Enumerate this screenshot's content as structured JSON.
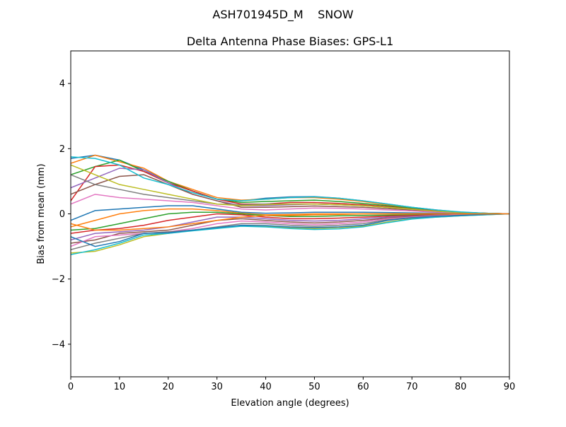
{
  "chart_data": {
    "type": "line",
    "suptitle": "ASH701945D_M    SNOW",
    "title": "Delta Antenna Phase Biases: GPS-L1",
    "xlabel": "Elevation angle (degrees)",
    "ylabel": "Bias from mean (mm)",
    "xlim": [
      0,
      90
    ],
    "ylim": [
      -5,
      5
    ],
    "xticks": [
      0,
      10,
      20,
      30,
      40,
      50,
      60,
      70,
      80,
      90
    ],
    "xtick_labels": [
      "0",
      "10",
      "20",
      "30",
      "40",
      "50",
      "60",
      "70",
      "80",
      "90"
    ],
    "yticks": [
      -4,
      -2,
      0,
      2,
      4
    ],
    "ytick_labels": [
      "−4",
      "−2",
      "0",
      "2",
      "4"
    ],
    "grid": false,
    "colors": [
      "#1f77b4",
      "#ff7f0e",
      "#2ca02c",
      "#d62728",
      "#9467bd",
      "#8c564b",
      "#e377c2",
      "#7f7f7f",
      "#bcbd22",
      "#17becf"
    ],
    "x": [
      0,
      5,
      10,
      15,
      20,
      25,
      30,
      35,
      40,
      45,
      50,
      55,
      60,
      65,
      70,
      75,
      80,
      85,
      90
    ],
    "series": [
      {
        "values": [
          1.7,
          1.8,
          1.65,
          1.35,
          1.0,
          0.7,
          0.45,
          0.4,
          0.48,
          0.52,
          0.53,
          0.48,
          0.4,
          0.3,
          0.2,
          0.12,
          0.05,
          0.02,
          0
        ]
      },
      {
        "values": [
          1.55,
          1.8,
          1.6,
          1.4,
          1.0,
          0.75,
          0.5,
          0.42,
          0.45,
          0.5,
          0.5,
          0.45,
          0.38,
          0.28,
          0.18,
          0.1,
          0.05,
          0.02,
          0
        ]
      },
      {
        "values": [
          1.2,
          1.45,
          1.65,
          1.3,
          1.0,
          0.7,
          0.45,
          0.35,
          0.38,
          0.4,
          0.42,
          0.38,
          0.32,
          0.25,
          0.17,
          0.1,
          0.05,
          0.02,
          0
        ]
      },
      {
        "values": [
          0.4,
          1.45,
          1.5,
          1.3,
          0.95,
          0.7,
          0.45,
          0.3,
          0.3,
          0.35,
          0.35,
          0.32,
          0.28,
          0.22,
          0.15,
          0.09,
          0.04,
          0.02,
          0
        ]
      },
      {
        "values": [
          0.8,
          1.1,
          1.4,
          1.35,
          0.95,
          0.6,
          0.4,
          0.25,
          0.25,
          0.28,
          0.3,
          0.28,
          0.25,
          0.2,
          0.14,
          0.08,
          0.04,
          0.01,
          0
        ]
      },
      {
        "values": [
          0.6,
          0.9,
          1.15,
          1.2,
          0.9,
          0.6,
          0.4,
          0.2,
          0.2,
          0.22,
          0.24,
          0.22,
          0.2,
          0.16,
          0.12,
          0.07,
          0.03,
          0.01,
          0
        ]
      },
      {
        "values": [
          0.3,
          0.6,
          0.5,
          0.45,
          0.4,
          0.35,
          0.25,
          0.15,
          0.12,
          0.15,
          0.18,
          0.17,
          0.15,
          0.12,
          0.09,
          0.05,
          0.03,
          0.01,
          0
        ]
      },
      {
        "values": [
          1.2,
          0.9,
          0.75,
          0.6,
          0.5,
          0.4,
          0.3,
          0.28,
          0.3,
          0.3,
          0.3,
          0.28,
          0.25,
          0.2,
          0.14,
          0.08,
          0.04,
          0.01,
          0
        ]
      },
      {
        "values": [
          1.5,
          1.2,
          0.9,
          0.75,
          0.6,
          0.45,
          0.3,
          0.25,
          0.28,
          0.3,
          0.3,
          0.28,
          0.25,
          0.2,
          0.14,
          0.08,
          0.04,
          0.01,
          0
        ]
      },
      {
        "values": [
          1.75,
          1.7,
          1.5,
          1.1,
          0.9,
          0.65,
          0.45,
          0.4,
          0.45,
          0.5,
          0.52,
          0.48,
          0.4,
          0.3,
          0.2,
          0.12,
          0.06,
          0.02,
          0
        ]
      },
      {
        "values": [
          -0.2,
          0.1,
          0.15,
          0.2,
          0.25,
          0.25,
          0.15,
          0.05,
          0.02,
          0.03,
          0.05,
          0.05,
          0.05,
          0.04,
          0.03,
          0.02,
          0.01,
          0,
          0
        ]
      },
      {
        "values": [
          -0.4,
          -0.2,
          0,
          0.1,
          0.15,
          0.15,
          0.1,
          0.02,
          -0.03,
          -0.02,
          0,
          0,
          0,
          0,
          0,
          0,
          0,
          0,
          0
        ]
      },
      {
        "values": [
          -0.5,
          -0.45,
          -0.3,
          -0.15,
          0,
          0.05,
          0.05,
          0,
          -0.05,
          -0.08,
          -0.08,
          -0.06,
          -0.05,
          -0.04,
          -0.03,
          -0.02,
          -0.01,
          0,
          0
        ]
      },
      {
        "values": [
          -0.6,
          -0.5,
          -0.45,
          -0.35,
          -0.2,
          -0.1,
          0,
          -0.03,
          -0.1,
          -0.15,
          -0.15,
          -0.13,
          -0.1,
          -0.07,
          -0.05,
          -0.03,
          -0.02,
          -0.01,
          0
        ]
      },
      {
        "values": [
          -0.8,
          -0.6,
          -0.55,
          -0.5,
          -0.4,
          -0.25,
          -0.1,
          -0.1,
          -0.15,
          -0.2,
          -0.22,
          -0.2,
          -0.15,
          -0.1,
          -0.07,
          -0.04,
          -0.02,
          -0.01,
          0
        ]
      },
      {
        "values": [
          -0.9,
          -0.8,
          -0.6,
          -0.55,
          -0.5,
          -0.35,
          -0.2,
          -0.15,
          -0.2,
          -0.25,
          -0.28,
          -0.25,
          -0.2,
          -0.13,
          -0.08,
          -0.05,
          -0.03,
          -0.01,
          0
        ]
      },
      {
        "values": [
          -1.0,
          -0.7,
          -0.65,
          -0.6,
          -0.55,
          -0.45,
          -0.3,
          -0.22,
          -0.25,
          -0.3,
          -0.33,
          -0.3,
          -0.25,
          -0.15,
          -0.1,
          -0.06,
          -0.03,
          -0.01,
          0
        ]
      },
      {
        "values": [
          -1.1,
          -0.9,
          -0.75,
          -0.6,
          -0.55,
          -0.5,
          -0.4,
          -0.3,
          -0.3,
          -0.35,
          -0.38,
          -0.35,
          -0.3,
          -0.18,
          -0.12,
          -0.07,
          -0.04,
          -0.02,
          0
        ]
      },
      {
        "values": [
          -1.2,
          -1.15,
          -0.95,
          -0.7,
          -0.6,
          -0.5,
          -0.42,
          -0.37,
          -0.38,
          -0.42,
          -0.45,
          -0.42,
          -0.38,
          -0.25,
          -0.15,
          -0.1,
          -0.06,
          -0.03,
          0
        ]
      },
      {
        "values": [
          -1.25,
          -1.1,
          -0.9,
          -0.65,
          -0.6,
          -0.52,
          -0.45,
          -0.38,
          -0.4,
          -0.45,
          -0.48,
          -0.46,
          -0.4,
          -0.27,
          -0.16,
          -0.1,
          -0.06,
          -0.03,
          0
        ]
      },
      {
        "values": [
          -0.7,
          -1.0,
          -0.85,
          -0.6,
          -0.58,
          -0.5,
          -0.42,
          -0.35,
          -0.36,
          -0.4,
          -0.42,
          -0.4,
          -0.35,
          -0.2,
          -0.12,
          -0.08,
          -0.05,
          -0.02,
          0
        ]
      },
      {
        "values": [
          -0.3,
          -0.5,
          -0.5,
          -0.45,
          -0.4,
          -0.3,
          -0.2,
          -0.1,
          -0.05,
          -0.05,
          -0.03,
          -0.02,
          0,
          0,
          0,
          0,
          0,
          0,
          0
        ]
      }
    ]
  }
}
